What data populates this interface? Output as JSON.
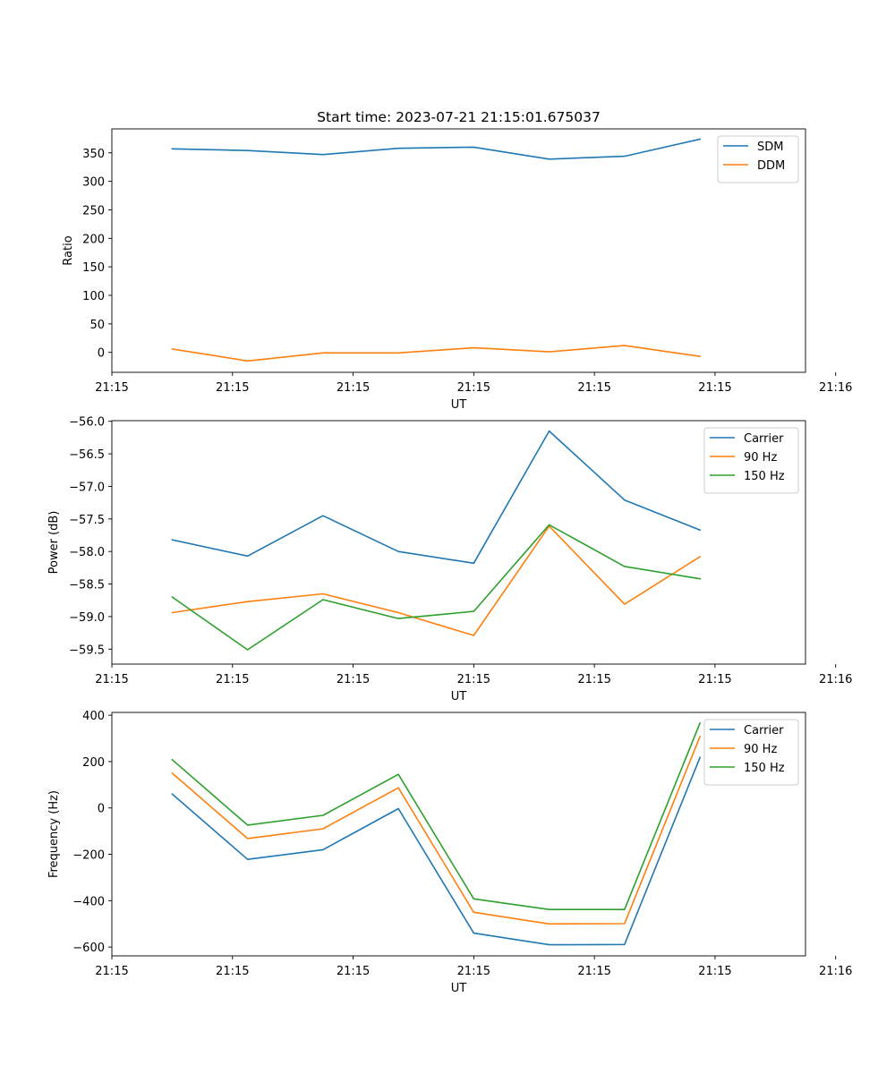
{
  "chart_data": [
    {
      "type": "line",
      "title": "Start time: 2023-07-21 21:15:01.675037",
      "xlabel": "UT",
      "ylabel": "Ratio",
      "xlim": [
        0,
        9.2
      ],
      "ylim": [
        -35,
        392
      ],
      "yticks": [
        0,
        50,
        100,
        150,
        200,
        250,
        300,
        350
      ],
      "xticks": [
        0,
        1.6,
        3.2,
        4.8,
        6.4,
        8.0,
        9.6
      ],
      "xtick_labels": [
        "21:15",
        "21:15",
        "21:15",
        "21:15",
        "21:15",
        "21:15",
        "21:16"
      ],
      "legend": "top-right",
      "x": [
        0.8,
        1.8,
        2.8,
        3.8,
        4.8,
        5.8,
        6.8,
        7.8
      ],
      "series": [
        {
          "name": "SDM",
          "color": "#1f77b4",
          "values": [
            357,
            354,
            347,
            358,
            360,
            339,
            344,
            374
          ]
        },
        {
          "name": "DDM",
          "color": "#ff7f0e",
          "values": [
            6,
            -15,
            -1,
            -1,
            8,
            1,
            12,
            -7
          ]
        }
      ]
    },
    {
      "type": "line",
      "title": "",
      "xlabel": "UT",
      "ylabel": "Power (dB)",
      "xlim": [
        0,
        9.2
      ],
      "ylim": [
        -59.73,
        -55.99
      ],
      "yticks": [
        -59.5,
        -59.0,
        -58.5,
        -58.0,
        -57.5,
        -57.0,
        -56.5,
        -56.0
      ],
      "ytick_labels": [
        "−59.5",
        "−59.0",
        "−58.5",
        "−58.0",
        "−57.5",
        "−57.0",
        "−56.5",
        "−56.0"
      ],
      "xticks": [
        0,
        1.6,
        3.2,
        4.8,
        6.4,
        8.0,
        9.6
      ],
      "xtick_labels": [
        "21:15",
        "21:15",
        "21:15",
        "21:15",
        "21:15",
        "21:15",
        "21:16"
      ],
      "legend": "top-right",
      "x": [
        0.8,
        1.8,
        2.8,
        3.8,
        4.8,
        5.8,
        6.8,
        7.8
      ],
      "series": [
        {
          "name": "Carrier",
          "color": "#1f77b4",
          "values": [
            -57.82,
            -58.07,
            -57.45,
            -58.0,
            -58.18,
            -56.15,
            -57.21,
            -57.67
          ]
        },
        {
          "name": "90 Hz",
          "color": "#ff7f0e",
          "values": [
            -58.94,
            -58.77,
            -58.65,
            -58.94,
            -59.29,
            -57.61,
            -58.81,
            -58.08
          ]
        },
        {
          "name": "150 Hz",
          "color": "#2ca02c",
          "values": [
            -58.7,
            -59.51,
            -58.74,
            -59.03,
            -58.92,
            -57.59,
            -58.23,
            -58.42
          ]
        }
      ]
    },
    {
      "type": "line",
      "title": "",
      "xlabel": "UT",
      "ylabel": "Frequency (Hz)",
      "xlim": [
        0,
        9.2
      ],
      "ylim": [
        -638,
        412
      ],
      "yticks": [
        -600,
        -400,
        -200,
        0,
        200,
        400
      ],
      "ytick_labels": [
        "−600",
        "−400",
        "−200",
        "0",
        "200",
        "400"
      ],
      "xticks": [
        0,
        1.6,
        3.2,
        4.8,
        6.4,
        8.0,
        9.6
      ],
      "xtick_labels": [
        "21:15",
        "21:15",
        "21:15",
        "21:15",
        "21:15",
        "21:15",
        "21:16"
      ],
      "legend": "top-right",
      "x": [
        0.8,
        1.8,
        2.8,
        3.8,
        4.8,
        5.8,
        6.8,
        7.8
      ],
      "series": [
        {
          "name": "Carrier",
          "color": "#1f77b4",
          "values": [
            60,
            -222,
            -180,
            -3,
            -540,
            -590,
            -589,
            218
          ]
        },
        {
          "name": "90 Hz",
          "color": "#ff7f0e",
          "values": [
            150,
            -132,
            -90,
            87,
            -450,
            -500,
            -499,
            308
          ]
        },
        {
          "name": "150 Hz",
          "color": "#2ca02c",
          "values": [
            208,
            -74,
            -32,
            145,
            -392,
            -438,
            -438,
            366
          ]
        }
      ]
    }
  ]
}
